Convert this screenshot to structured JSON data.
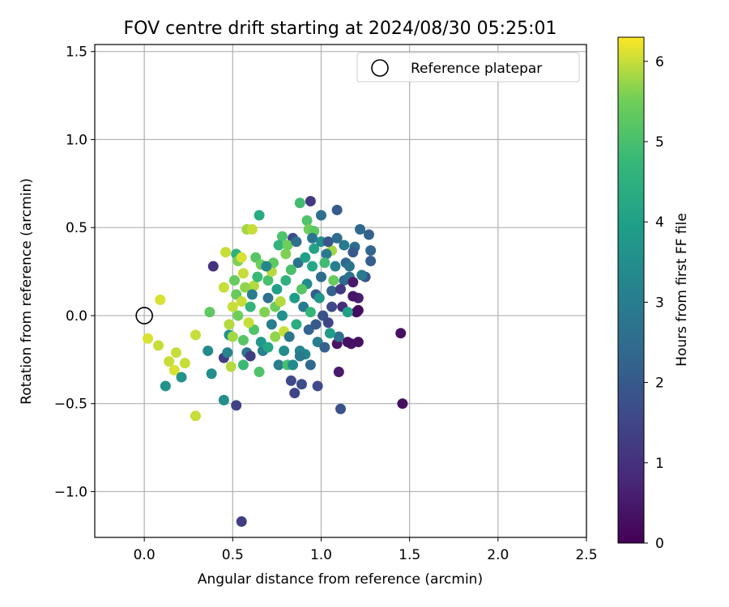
{
  "chart_data": {
    "type": "scatter",
    "title": "FOV centre drift starting at 2024/08/30 05:25:01",
    "xlabel": "Angular distance from reference (arcmin)",
    "ylabel": "Rotation from reference (arcmin)",
    "xlim": [
      -0.28,
      2.5
    ],
    "ylim": [
      -1.26,
      1.54
    ],
    "xticks": [
      0.0,
      0.5,
      1.0,
      1.5,
      2.0,
      2.5
    ],
    "xtick_labels": [
      "0.0",
      "0.5",
      "1.0",
      "1.5",
      "2.0",
      "2.5"
    ],
    "yticks": [
      -1.0,
      -0.5,
      0.0,
      0.5,
      1.0,
      1.5
    ],
    "ytick_labels": [
      "−1.0",
      "−0.5",
      "0.0",
      "0.5",
      "1.0",
      "1.5"
    ],
    "grid": true,
    "legend": {
      "placement": "top-right",
      "entries": [
        "Reference platepar"
      ]
    },
    "reference_point": {
      "x": 0.0,
      "y": 0.0,
      "label": "Reference platepar"
    },
    "colorbar": {
      "label": "Hours from first FF file",
      "range": [
        0,
        6.3
      ],
      "ticks": [
        0,
        1,
        2,
        3,
        4,
        5,
        6
      ],
      "tick_labels": [
        "0",
        "1",
        "2",
        "3",
        "4",
        "5",
        "6"
      ],
      "colormap": "viridis"
    },
    "color_variable": "Hours from first FF file",
    "points": [
      {
        "x": 0.09,
        "y": 0.09,
        "c": 6.1
      },
      {
        "x": 0.02,
        "y": -0.13,
        "c": 6.1
      },
      {
        "x": 0.08,
        "y": -0.17,
        "c": 6.0
      },
      {
        "x": 0.14,
        "y": -0.26,
        "c": 6.0
      },
      {
        "x": 0.18,
        "y": -0.21,
        "c": 6.0
      },
      {
        "x": 0.17,
        "y": -0.31,
        "c": 6.1
      },
      {
        "x": 0.23,
        "y": -0.27,
        "c": 6.0
      },
      {
        "x": 0.29,
        "y": -0.11,
        "c": 6.0
      },
      {
        "x": 0.29,
        "y": -0.57,
        "c": 6.0
      },
      {
        "x": 0.12,
        "y": -0.4,
        "c": 3.6
      },
      {
        "x": 0.21,
        "y": -0.35,
        "c": 3.6
      },
      {
        "x": 0.36,
        "y": -0.2,
        "c": 3.4
      },
      {
        "x": 0.38,
        "y": -0.33,
        "c": 3.5
      },
      {
        "x": 0.37,
        "y": 0.02,
        "c": 5.3
      },
      {
        "x": 0.39,
        "y": 0.28,
        "c": 1.0
      },
      {
        "x": 0.45,
        "y": -0.48,
        "c": 3.5
      },
      {
        "x": 0.52,
        "y": -0.51,
        "c": 1.4
      },
      {
        "x": 0.55,
        "y": -1.17,
        "c": 1.3
      },
      {
        "x": 0.46,
        "y": 0.36,
        "c": 6.0
      },
      {
        "x": 0.45,
        "y": 0.16,
        "c": 6.0
      },
      {
        "x": 0.48,
        "y": -0.11,
        "c": 3.6
      },
      {
        "x": 0.5,
        "y": -0.12,
        "c": 5.8
      },
      {
        "x": 0.49,
        "y": -0.29,
        "c": 5.9
      },
      {
        "x": 0.45,
        "y": -0.24,
        "c": 1.3
      },
      {
        "x": 0.47,
        "y": -0.21,
        "c": 3.2
      },
      {
        "x": 0.52,
        "y": 0.35,
        "c": 4.5
      },
      {
        "x": 0.53,
        "y": 0.31,
        "c": 5.6
      },
      {
        "x": 0.56,
        "y": 0.24,
        "c": 6.0
      },
      {
        "x": 0.55,
        "y": 0.33,
        "c": 6.1
      },
      {
        "x": 0.52,
        "y": 0.12,
        "c": 5.4
      },
      {
        "x": 0.55,
        "y": 0.08,
        "c": 6.0
      },
      {
        "x": 0.56,
        "y": -0.28,
        "c": 4.8
      },
      {
        "x": 0.58,
        "y": -0.21,
        "c": 2.8
      },
      {
        "x": 0.6,
        "y": -0.23,
        "c": 1.3
      },
      {
        "x": 0.58,
        "y": 0.49,
        "c": 5.8
      },
      {
        "x": 0.61,
        "y": 0.49,
        "c": 6.0
      },
      {
        "x": 0.65,
        "y": 0.57,
        "c": 4.3
      },
      {
        "x": 0.63,
        "y": 0.33,
        "c": 5.2
      },
      {
        "x": 0.66,
        "y": 0.29,
        "c": 5.5
      },
      {
        "x": 0.62,
        "y": 0.17,
        "c": 5.9
      },
      {
        "x": 0.65,
        "y": -0.32,
        "c": 5.1
      },
      {
        "x": 0.67,
        "y": -0.2,
        "c": 3.1
      },
      {
        "x": 0.7,
        "y": 0.2,
        "c": 5.0
      },
      {
        "x": 0.72,
        "y": 0.25,
        "c": 5.9
      },
      {
        "x": 0.74,
        "y": 0.05,
        "c": 5.5
      },
      {
        "x": 0.76,
        "y": -0.28,
        "c": 3.0
      },
      {
        "x": 0.78,
        "y": 0.45,
        "c": 5.1
      },
      {
        "x": 0.79,
        "y": -0.09,
        "c": 6.0
      },
      {
        "x": 0.8,
        "y": 0.35,
        "c": 5.6
      },
      {
        "x": 0.81,
        "y": -0.28,
        "c": 5.0
      },
      {
        "x": 0.83,
        "y": -0.37,
        "c": 1.6
      },
      {
        "x": 0.85,
        "y": -0.44,
        "c": 1.5
      },
      {
        "x": 0.84,
        "y": 0.44,
        "c": 1.6
      },
      {
        "x": 0.88,
        "y": 0.64,
        "c": 4.9
      },
      {
        "x": 0.94,
        "y": 0.65,
        "c": 1.2
      },
      {
        "x": 0.89,
        "y": -0.39,
        "c": 1.7
      },
      {
        "x": 0.92,
        "y": 0.54,
        "c": 5.1
      },
      {
        "x": 0.93,
        "y": 0.49,
        "c": 5.5
      },
      {
        "x": 0.96,
        "y": 0.48,
        "c": 5.3
      },
      {
        "x": 0.98,
        "y": -0.4,
        "c": 1.6
      },
      {
        "x": 1.0,
        "y": 0.57,
        "c": 2.6
      },
      {
        "x": 1.09,
        "y": 0.6,
        "c": 2.0
      },
      {
        "x": 1.06,
        "y": 0.37,
        "c": 5.8
      },
      {
        "x": 1.1,
        "y": -0.32,
        "c": 0.5
      },
      {
        "x": 1.11,
        "y": -0.53,
        "c": 1.8
      },
      {
        "x": 1.09,
        "y": -0.16,
        "c": 0.4
      },
      {
        "x": 1.13,
        "y": 0.2,
        "c": 2.4
      },
      {
        "x": 1.17,
        "y": -0.16,
        "c": 0.4
      },
      {
        "x": 1.21,
        "y": -0.15,
        "c": 0.3
      },
      {
        "x": 1.19,
        "y": 0.39,
        "c": 2.5
      },
      {
        "x": 1.22,
        "y": 0.49,
        "c": 2.4
      },
      {
        "x": 1.25,
        "y": 0.22,
        "c": 1.9
      },
      {
        "x": 1.27,
        "y": 0.46,
        "c": 2.2
      },
      {
        "x": 1.28,
        "y": 0.37,
        "c": 2.3
      },
      {
        "x": 1.28,
        "y": 0.31,
        "c": 2.1
      },
      {
        "x": 1.2,
        "y": 0.02,
        "c": 0.2
      },
      {
        "x": 1.21,
        "y": 0.1,
        "c": 0.6
      },
      {
        "x": 1.18,
        "y": 0.11,
        "c": 0.4
      },
      {
        "x": 1.45,
        "y": -0.1,
        "c": 0.3
      },
      {
        "x": 1.46,
        "y": -0.5,
        "c": 0.3
      },
      {
        "x": 0.7,
        "y": 0.1,
        "c": 2.6
      },
      {
        "x": 0.72,
        "y": -0.05,
        "c": 3.0
      },
      {
        "x": 0.75,
        "y": 0.15,
        "c": 4.0
      },
      {
        "x": 0.78,
        "y": 0.0,
        "c": 3.6
      },
      {
        "x": 0.8,
        "y": 0.2,
        "c": 4.5
      },
      {
        "x": 0.82,
        "y": -0.12,
        "c": 2.8
      },
      {
        "x": 0.85,
        "y": 0.1,
        "c": 3.9
      },
      {
        "x": 0.87,
        "y": 0.3,
        "c": 2.7
      },
      {
        "x": 0.88,
        "y": -0.2,
        "c": 3.2
      },
      {
        "x": 0.9,
        "y": 0.05,
        "c": 2.9
      },
      {
        "x": 0.92,
        "y": 0.18,
        "c": 3.4
      },
      {
        "x": 0.93,
        "y": -0.08,
        "c": 2.3
      },
      {
        "x": 0.95,
        "y": 0.28,
        "c": 4.2
      },
      {
        "x": 0.97,
        "y": 0.12,
        "c": 2.1
      },
      {
        "x": 0.98,
        "y": -0.15,
        "c": 3.0
      },
      {
        "x": 1.0,
        "y": 0.22,
        "c": 2.5
      },
      {
        "x": 1.01,
        "y": 0.0,
        "c": 1.8
      },
      {
        "x": 1.03,
        "y": 0.35,
        "c": 2.9
      },
      {
        "x": 1.04,
        "y": -0.04,
        "c": 1.5
      },
      {
        "x": 1.06,
        "y": 0.14,
        "c": 2.2
      },
      {
        "x": 1.08,
        "y": 0.28,
        "c": 3.1
      },
      {
        "x": 1.1,
        "y": -0.12,
        "c": 2.6
      },
      {
        "x": 1.12,
        "y": 0.05,
        "c": 0.9
      },
      {
        "x": 1.14,
        "y": 0.3,
        "c": 2.4
      },
      {
        "x": 1.15,
        "y": 0.02,
        "c": 4.0
      },
      {
        "x": 0.6,
        "y": 0.05,
        "c": 4.6
      },
      {
        "x": 0.62,
        "y": -0.08,
        "c": 5.1
      },
      {
        "x": 0.64,
        "y": 0.22,
        "c": 4.8
      },
      {
        "x": 0.66,
        "y": -0.15,
        "c": 3.8
      },
      {
        "x": 0.68,
        "y": 0.02,
        "c": 5.6
      },
      {
        "x": 0.7,
        "y": -0.18,
        "c": 4.2
      },
      {
        "x": 0.73,
        "y": 0.3,
        "c": 5.3
      },
      {
        "x": 0.74,
        "y": -0.12,
        "c": 5.7
      },
      {
        "x": 0.77,
        "y": 0.08,
        "c": 5.9
      },
      {
        "x": 0.79,
        "y": -0.2,
        "c": 3.5
      },
      {
        "x": 0.83,
        "y": 0.26,
        "c": 5.0
      },
      {
        "x": 0.86,
        "y": -0.05,
        "c": 4.4
      },
      {
        "x": 0.89,
        "y": 0.15,
        "c": 5.2
      },
      {
        "x": 0.91,
        "y": -0.22,
        "c": 3.3
      },
      {
        "x": 0.94,
        "y": 0.02,
        "c": 4.7
      },
      {
        "x": 0.96,
        "y": 0.38,
        "c": 4.1
      },
      {
        "x": 0.99,
        "y": 0.1,
        "c": 3.7
      },
      {
        "x": 1.02,
        "y": 0.3,
        "c": 4.9
      },
      {
        "x": 1.05,
        "y": -0.1,
        "c": 3.9
      },
      {
        "x": 1.07,
        "y": 0.2,
        "c": 5.4
      },
      {
        "x": 0.57,
        "y": 0.16,
        "c": 5.7
      },
      {
        "x": 0.59,
        "y": -0.04,
        "c": 6.0
      },
      {
        "x": 0.53,
        "y": 0.0,
        "c": 5.5
      },
      {
        "x": 0.56,
        "y": -0.14,
        "c": 5.2
      },
      {
        "x": 0.51,
        "y": 0.2,
        "c": 5.4
      },
      {
        "x": 0.5,
        "y": 0.05,
        "c": 6.0
      },
      {
        "x": 0.48,
        "y": -0.05,
        "c": 5.9
      },
      {
        "x": 0.61,
        "y": 0.12,
        "c": 3.0
      },
      {
        "x": 0.69,
        "y": 0.28,
        "c": 3.3
      },
      {
        "x": 0.76,
        "y": 0.4,
        "c": 4.6
      },
      {
        "x": 0.81,
        "y": 0.4,
        "c": 5.5
      },
      {
        "x": 0.86,
        "y": 0.42,
        "c": 2.6
      },
      {
        "x": 0.91,
        "y": 0.33,
        "c": 4.0
      },
      {
        "x": 0.95,
        "y": 0.44,
        "c": 2.8
      },
      {
        "x": 1.0,
        "y": 0.42,
        "c": 3.5
      },
      {
        "x": 1.04,
        "y": 0.42,
        "c": 1.9
      },
      {
        "x": 1.09,
        "y": 0.44,
        "c": 2.5
      },
      {
        "x": 1.13,
        "y": 0.4,
        "c": 2.9
      },
      {
        "x": 1.16,
        "y": 0.22,
        "c": 2.6
      },
      {
        "x": 1.18,
        "y": 0.36,
        "c": 2.0
      },
      {
        "x": 0.84,
        "y": -0.28,
        "c": 3.4
      },
      {
        "x": 0.88,
        "y": -0.23,
        "c": 2.9
      },
      {
        "x": 0.94,
        "y": -0.28,
        "c": 2.4
      },
      {
        "x": 0.97,
        "y": -0.05,
        "c": 2.0
      },
      {
        "x": 1.02,
        "y": -0.18,
        "c": 2.2
      },
      {
        "x": 1.06,
        "y": 0.05,
        "c": 1.6
      },
      {
        "x": 1.11,
        "y": 0.15,
        "c": 1.2
      },
      {
        "x": 1.16,
        "y": 0.28,
        "c": 2.7
      },
      {
        "x": 1.23,
        "y": 0.23,
        "c": 2.9
      },
      {
        "x": 1.21,
        "y": 0.03,
        "c": 0.2
      },
      {
        "x": 1.18,
        "y": 0.19,
        "c": 0.5
      },
      {
        "x": 1.15,
        "y": -0.15,
        "c": 0.3
      }
    ]
  }
}
